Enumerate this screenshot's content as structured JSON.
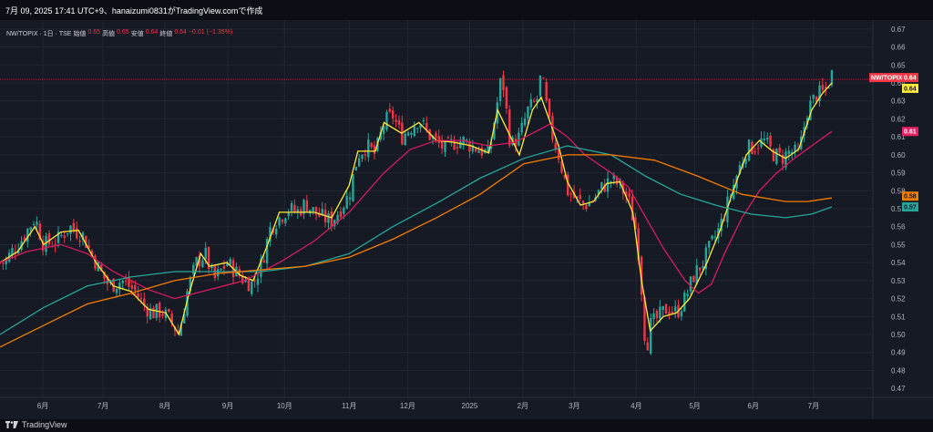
{
  "header": {
    "title": "7月 09, 2025 17:41 UTC+9、hanaizumi0831がTradingView.comで作成"
  },
  "footer": {
    "brand": "TradingView"
  },
  "legend": {
    "symbol": "NW/TOPIX · 1日 · TSE",
    "open_label": "始値",
    "open": "0.65",
    "high_label": "高値",
    "high": "0.65",
    "low_label": "安値",
    "low": "0.64",
    "close_label": "終値",
    "close": "0.64",
    "change": "−0.01 (−1.35%)"
  },
  "chart_data": {
    "type": "line",
    "subtype": "candlestick",
    "ylim": [
      0.465,
      0.675
    ],
    "y_ticks": [
      0.47,
      0.48,
      0.49,
      0.5,
      0.51,
      0.52,
      0.53,
      0.54,
      0.55,
      0.56,
      0.57,
      0.58,
      0.59,
      0.6,
      0.61,
      0.62,
      0.63,
      0.64,
      0.65,
      0.66,
      0.67
    ],
    "y_tick_labels": [
      "0.47",
      "0.48",
      "0.49",
      "0.50",
      "0.51",
      "0.52",
      "0.53",
      "0.54",
      "0.55",
      "0.56",
      "0.57",
      "0.58",
      "0.59",
      "0.60",
      "0.61",
      "0.62",
      "0.63",
      "0.64",
      "0.65",
      "0.66",
      "0.67"
    ],
    "x_labels": [
      {
        "t": 0.049,
        "label": "6月"
      },
      {
        "t": 0.118,
        "label": "7月"
      },
      {
        "t": 0.189,
        "label": "8月"
      },
      {
        "t": 0.261,
        "label": "9月"
      },
      {
        "t": 0.326,
        "label": "10月"
      },
      {
        "t": 0.4,
        "label": "11月"
      },
      {
        "t": 0.467,
        "label": "12月"
      },
      {
        "t": 0.538,
        "label": "2025"
      },
      {
        "t": 0.599,
        "label": "2月"
      },
      {
        "t": 0.658,
        "label": "3月"
      },
      {
        "t": 0.729,
        "label": "4月"
      },
      {
        "t": 0.796,
        "label": "5月"
      },
      {
        "t": 0.863,
        "label": "6月"
      },
      {
        "t": 0.932,
        "label": "7月"
      }
    ],
    "price_line": 0.642,
    "candle_anchors": [
      [
        0.005,
        0.54
      ],
      [
        0.015,
        0.547
      ],
      [
        0.025,
        0.553
      ],
      [
        0.04,
        0.565
      ],
      [
        0.05,
        0.55
      ],
      [
        0.065,
        0.552
      ],
      [
        0.08,
        0.56
      ],
      [
        0.095,
        0.555
      ],
      [
        0.105,
        0.545
      ],
      [
        0.115,
        0.535
      ],
      [
        0.125,
        0.527
      ],
      [
        0.14,
        0.53
      ],
      [
        0.155,
        0.524
      ],
      [
        0.165,
        0.516
      ],
      [
        0.175,
        0.512
      ],
      [
        0.185,
        0.513
      ],
      [
        0.195,
        0.508
      ],
      [
        0.205,
        0.5
      ],
      [
        0.215,
        0.525
      ],
      [
        0.225,
        0.54
      ],
      [
        0.235,
        0.545
      ],
      [
        0.245,
        0.53
      ],
      [
        0.26,
        0.54
      ],
      [
        0.27,
        0.535
      ],
      [
        0.28,
        0.53
      ],
      [
        0.29,
        0.528
      ],
      [
        0.3,
        0.54
      ],
      [
        0.31,
        0.56
      ],
      [
        0.32,
        0.565
      ],
      [
        0.33,
        0.57
      ],
      [
        0.34,
        0.568
      ],
      [
        0.35,
        0.573
      ],
      [
        0.36,
        0.568
      ],
      [
        0.37,
        0.565
      ],
      [
        0.38,
        0.563
      ],
      [
        0.39,
        0.57
      ],
      [
        0.4,
        0.578
      ],
      [
        0.41,
        0.6
      ],
      [
        0.42,
        0.605
      ],
      [
        0.43,
        0.6
      ],
      [
        0.44,
        0.618
      ],
      [
        0.45,
        0.622
      ],
      [
        0.46,
        0.61
      ],
      [
        0.47,
        0.615
      ],
      [
        0.48,
        0.62
      ],
      [
        0.49,
        0.612
      ],
      [
        0.5,
        0.607
      ],
      [
        0.51,
        0.603
      ],
      [
        0.52,
        0.607
      ],
      [
        0.53,
        0.608
      ],
      [
        0.54,
        0.605
      ],
      [
        0.55,
        0.603
      ],
      [
        0.56,
        0.6
      ],
      [
        0.565,
        0.615
      ],
      [
        0.575,
        0.645
      ],
      [
        0.585,
        0.605
      ],
      [
        0.595,
        0.61
      ],
      [
        0.605,
        0.625
      ],
      [
        0.615,
        0.63
      ],
      [
        0.62,
        0.645
      ],
      [
        0.63,
        0.615
      ],
      [
        0.64,
        0.6
      ],
      [
        0.65,
        0.58
      ],
      [
        0.66,
        0.575
      ],
      [
        0.67,
        0.572
      ],
      [
        0.68,
        0.575
      ],
      [
        0.69,
        0.582
      ],
      [
        0.7,
        0.586
      ],
      [
        0.71,
        0.583
      ],
      [
        0.72,
        0.575
      ],
      [
        0.73,
        0.555
      ],
      [
        0.735,
        0.525
      ],
      [
        0.74,
        0.49
      ],
      [
        0.745,
        0.505
      ],
      [
        0.755,
        0.51
      ],
      [
        0.765,
        0.515
      ],
      [
        0.775,
        0.512
      ],
      [
        0.785,
        0.52
      ],
      [
        0.795,
        0.533
      ],
      [
        0.805,
        0.54
      ],
      [
        0.815,
        0.55
      ],
      [
        0.825,
        0.56
      ],
      [
        0.835,
        0.575
      ],
      [
        0.845,
        0.59
      ],
      [
        0.855,
        0.603
      ],
      [
        0.865,
        0.605
      ],
      [
        0.875,
        0.608
      ],
      [
        0.885,
        0.601
      ],
      [
        0.895,
        0.598
      ],
      [
        0.905,
        0.602
      ],
      [
        0.915,
        0.6
      ],
      [
        0.925,
        0.625
      ],
      [
        0.935,
        0.633
      ],
      [
        0.945,
        0.635
      ],
      [
        0.953,
        0.645
      ]
    ],
    "series": [
      {
        "name": "",
        "value": 0.64,
        "color": "#ffeb3b",
        "points": [
          [
            0.0,
            0.54
          ],
          [
            0.02,
            0.546
          ],
          [
            0.04,
            0.56
          ],
          [
            0.05,
            0.55
          ],
          [
            0.07,
            0.557
          ],
          [
            0.09,
            0.558
          ],
          [
            0.11,
            0.54
          ],
          [
            0.13,
            0.527
          ],
          [
            0.15,
            0.524
          ],
          [
            0.17,
            0.514
          ],
          [
            0.19,
            0.512
          ],
          [
            0.205,
            0.5
          ],
          [
            0.215,
            0.52
          ],
          [
            0.23,
            0.545
          ],
          [
            0.24,
            0.538
          ],
          [
            0.26,
            0.54
          ],
          [
            0.275,
            0.533
          ],
          [
            0.29,
            0.53
          ],
          [
            0.305,
            0.548
          ],
          [
            0.32,
            0.568
          ],
          [
            0.34,
            0.568
          ],
          [
            0.36,
            0.568
          ],
          [
            0.38,
            0.565
          ],
          [
            0.4,
            0.583
          ],
          [
            0.41,
            0.602
          ],
          [
            0.43,
            0.602
          ],
          [
            0.44,
            0.618
          ],
          [
            0.46,
            0.612
          ],
          [
            0.48,
            0.618
          ],
          [
            0.5,
            0.608
          ],
          [
            0.52,
            0.607
          ],
          [
            0.54,
            0.605
          ],
          [
            0.56,
            0.601
          ],
          [
            0.57,
            0.625
          ],
          [
            0.58,
            0.615
          ],
          [
            0.595,
            0.6
          ],
          [
            0.61,
            0.625
          ],
          [
            0.62,
            0.632
          ],
          [
            0.64,
            0.605
          ],
          [
            0.65,
            0.585
          ],
          [
            0.665,
            0.572
          ],
          [
            0.68,
            0.574
          ],
          [
            0.695,
            0.584
          ],
          [
            0.71,
            0.585
          ],
          [
            0.725,
            0.568
          ],
          [
            0.735,
            0.53
          ],
          [
            0.745,
            0.502
          ],
          [
            0.76,
            0.51
          ],
          [
            0.775,
            0.512
          ],
          [
            0.79,
            0.52
          ],
          [
            0.81,
            0.54
          ],
          [
            0.825,
            0.558
          ],
          [
            0.84,
            0.58
          ],
          [
            0.855,
            0.6
          ],
          [
            0.87,
            0.608
          ],
          [
            0.885,
            0.602
          ],
          [
            0.9,
            0.598
          ],
          [
            0.915,
            0.603
          ],
          [
            0.93,
            0.625
          ],
          [
            0.942,
            0.634
          ],
          [
            0.953,
            0.64
          ]
        ]
      },
      {
        "name": "",
        "value": 0.61,
        "color": "#d81b60",
        "points": [
          [
            0.0,
            0.54
          ],
          [
            0.03,
            0.546
          ],
          [
            0.07,
            0.55
          ],
          [
            0.1,
            0.545
          ],
          [
            0.13,
            0.535
          ],
          [
            0.17,
            0.525
          ],
          [
            0.2,
            0.52
          ],
          [
            0.24,
            0.525
          ],
          [
            0.28,
            0.53
          ],
          [
            0.32,
            0.54
          ],
          [
            0.36,
            0.552
          ],
          [
            0.4,
            0.568
          ],
          [
            0.44,
            0.59
          ],
          [
            0.47,
            0.603
          ],
          [
            0.5,
            0.608
          ],
          [
            0.53,
            0.608
          ],
          [
            0.56,
            0.605
          ],
          [
            0.59,
            0.607
          ],
          [
            0.61,
            0.612
          ],
          [
            0.63,
            0.617
          ],
          [
            0.65,
            0.61
          ],
          [
            0.67,
            0.6
          ],
          [
            0.7,
            0.59
          ],
          [
            0.72,
            0.582
          ],
          [
            0.74,
            0.565
          ],
          [
            0.76,
            0.548
          ],
          [
            0.785,
            0.53
          ],
          [
            0.8,
            0.523
          ],
          [
            0.815,
            0.528
          ],
          [
            0.83,
            0.545
          ],
          [
            0.85,
            0.565
          ],
          [
            0.87,
            0.58
          ],
          [
            0.89,
            0.59
          ],
          [
            0.91,
            0.598
          ],
          [
            0.93,
            0.605
          ],
          [
            0.953,
            0.613
          ]
        ]
      },
      {
        "name": "",
        "value": 0.57,
        "color": "#26a69a",
        "points": [
          [
            0.0,
            0.5
          ],
          [
            0.05,
            0.515
          ],
          [
            0.1,
            0.527
          ],
          [
            0.15,
            0.532
          ],
          [
            0.2,
            0.535
          ],
          [
            0.25,
            0.535
          ],
          [
            0.3,
            0.535
          ],
          [
            0.35,
            0.538
          ],
          [
            0.4,
            0.545
          ],
          [
            0.45,
            0.56
          ],
          [
            0.5,
            0.573
          ],
          [
            0.55,
            0.587
          ],
          [
            0.6,
            0.598
          ],
          [
            0.65,
            0.605
          ],
          [
            0.7,
            0.6
          ],
          [
            0.74,
            0.588
          ],
          [
            0.78,
            0.578
          ],
          [
            0.82,
            0.572
          ],
          [
            0.86,
            0.567
          ],
          [
            0.9,
            0.565
          ],
          [
            0.93,
            0.567
          ],
          [
            0.953,
            0.571
          ]
        ]
      },
      {
        "name": "",
        "value": 0.58,
        "color": "#f57c00",
        "points": [
          [
            0.0,
            0.493
          ],
          [
            0.05,
            0.505
          ],
          [
            0.1,
            0.517
          ],
          [
            0.15,
            0.523
          ],
          [
            0.2,
            0.53
          ],
          [
            0.25,
            0.534
          ],
          [
            0.3,
            0.536
          ],
          [
            0.35,
            0.538
          ],
          [
            0.4,
            0.543
          ],
          [
            0.45,
            0.553
          ],
          [
            0.5,
            0.565
          ],
          [
            0.55,
            0.578
          ],
          [
            0.6,
            0.595
          ],
          [
            0.65,
            0.6
          ],
          [
            0.7,
            0.6
          ],
          [
            0.75,
            0.597
          ],
          [
            0.8,
            0.588
          ],
          [
            0.85,
            0.578
          ],
          [
            0.9,
            0.574
          ],
          [
            0.925,
            0.574
          ],
          [
            0.953,
            0.576
          ]
        ]
      }
    ],
    "price_tags": [
      {
        "label": "NW/TOPIX",
        "value": 0.643,
        "text": "0.64",
        "bg": "#f23645",
        "fg": "#ffffff"
      },
      {
        "label": "",
        "value": 0.637,
        "text": "0.64",
        "bg": "#ffeb3b",
        "fg": "#131722"
      },
      {
        "label": "",
        "value": 0.613,
        "text": "0.61",
        "bg": "#e91e63",
        "fg": "#ffffff"
      },
      {
        "label": "",
        "value": 0.577,
        "text": "0.58",
        "bg": "#f57c00",
        "fg": "#131722"
      },
      {
        "label": "",
        "value": 0.571,
        "text": "0.57",
        "bg": "#26a69a",
        "fg": "#131722"
      }
    ],
    "colors": {
      "up": "#26a69a",
      "down": "#f23645",
      "grid": "#202633",
      "background": "#161a25"
    }
  }
}
